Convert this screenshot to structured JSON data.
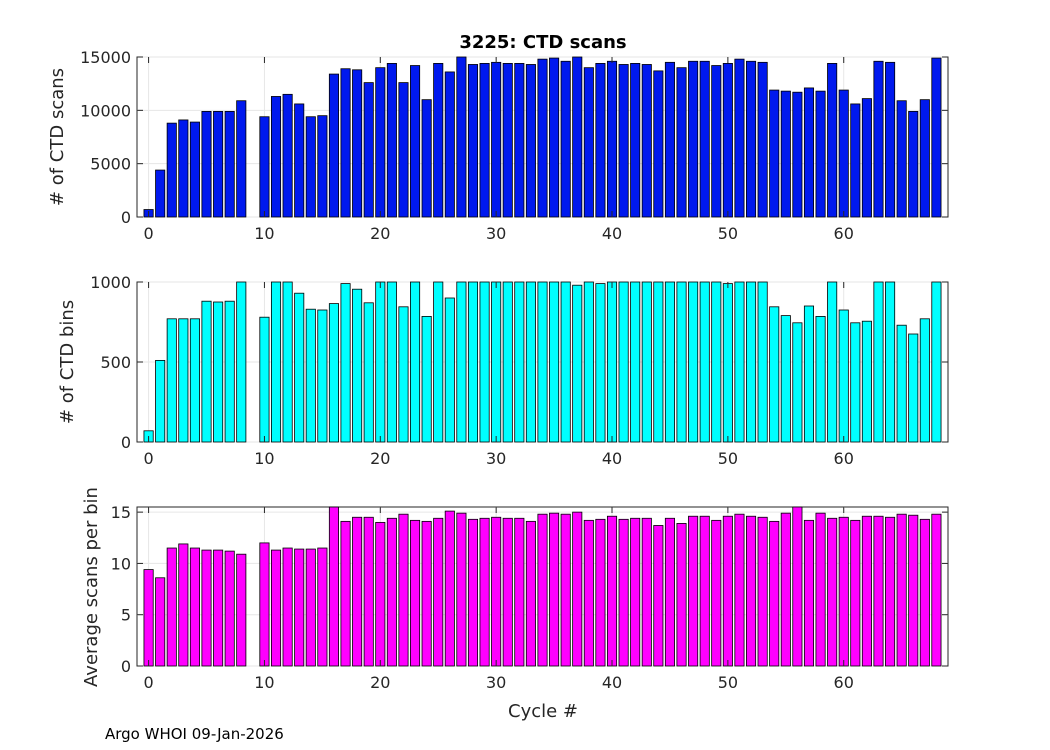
{
  "footer": "Argo WHOI 09-Jan-2026",
  "chart_data": [
    {
      "type": "bar",
      "title": "3225: CTD scans",
      "xlabel": "",
      "ylabel": "# of CTD scans",
      "color": "#0019ee",
      "xlim": [
        -1,
        69
      ],
      "ylim": [
        0,
        15000
      ],
      "xticks": [
        0,
        10,
        20,
        30,
        40,
        50,
        60
      ],
      "yticks": [
        0,
        5000,
        10000,
        15000
      ],
      "x": [
        0,
        1,
        2,
        3,
        4,
        5,
        6,
        7,
        8,
        9,
        10,
        11,
        12,
        13,
        14,
        15,
        16,
        17,
        18,
        19,
        20,
        21,
        22,
        23,
        24,
        25,
        26,
        27,
        28,
        29,
        30,
        31,
        32,
        33,
        34,
        35,
        36,
        37,
        38,
        39,
        40,
        41,
        42,
        43,
        44,
        45,
        46,
        47,
        48,
        49,
        50,
        51,
        52,
        53,
        54,
        55,
        56,
        57,
        58,
        59,
        60,
        61,
        62,
        63,
        64,
        65,
        66,
        67,
        68
      ],
      "values": [
        700,
        4400,
        8800,
        9100,
        8900,
        9900,
        9900,
        9900,
        10900,
        0,
        9400,
        11300,
        11500,
        10600,
        9400,
        9500,
        13400,
        13900,
        13800,
        12600,
        14000,
        14400,
        12600,
        14200,
        11000,
        14400,
        13600,
        15000,
        14300,
        14400,
        14500,
        14400,
        14400,
        14300,
        14800,
        14900,
        14600,
        15000,
        14000,
        14400,
        14600,
        14300,
        14400,
        14300,
        13700,
        14500,
        14000,
        14600,
        14600,
        14200,
        14400,
        14800,
        14600,
        14500,
        11900,
        11800,
        11700,
        12100,
        11800,
        14400,
        11900,
        10600,
        11100,
        14600,
        14500,
        10900,
        9900,
        11000,
        14900
      ]
    },
    {
      "type": "bar",
      "title": "",
      "xlabel": "",
      "ylabel": "# of CTD bins",
      "color": "#00ffff",
      "xlim": [
        -1,
        69
      ],
      "ylim": [
        0,
        1000
      ],
      "xticks": [
        0,
        10,
        20,
        30,
        40,
        50,
        60
      ],
      "yticks": [
        0,
        500,
        1000
      ],
      "x": [
        0,
        1,
        2,
        3,
        4,
        5,
        6,
        7,
        8,
        9,
        10,
        11,
        12,
        13,
        14,
        15,
        16,
        17,
        18,
        19,
        20,
        21,
        22,
        23,
        24,
        25,
        26,
        27,
        28,
        29,
        30,
        31,
        32,
        33,
        34,
        35,
        36,
        37,
        38,
        39,
        40,
        41,
        42,
        43,
        44,
        45,
        46,
        47,
        48,
        49,
        50,
        51,
        52,
        53,
        54,
        55,
        56,
        57,
        58,
        59,
        60,
        61,
        62,
        63,
        64,
        65,
        66,
        67,
        68
      ],
      "values": [
        70,
        510,
        770,
        770,
        770,
        880,
        875,
        880,
        1000,
        0,
        780,
        1000,
        1000,
        930,
        830,
        825,
        865,
        990,
        955,
        870,
        1000,
        1000,
        845,
        1000,
        785,
        1000,
        900,
        1000,
        1000,
        1000,
        1000,
        1000,
        1000,
        1000,
        1000,
        1000,
        1000,
        980,
        1000,
        990,
        1000,
        1000,
        1000,
        1000,
        1000,
        1000,
        1000,
        1000,
        1000,
        1000,
        990,
        1000,
        1000,
        1000,
        845,
        790,
        745,
        850,
        785,
        1000,
        825,
        745,
        755,
        1000,
        1000,
        730,
        675,
        770,
        1000
      ]
    },
    {
      "type": "bar",
      "title": "",
      "xlabel": "Cycle #",
      "ylabel": "Average scans per bin",
      "color": "#ff00ff",
      "xlim": [
        -1,
        69
      ],
      "ylim": [
        0,
        15.5
      ],
      "xticks": [
        0,
        10,
        20,
        30,
        40,
        50,
        60
      ],
      "yticks": [
        0,
        5,
        10,
        15
      ],
      "x": [
        0,
        1,
        2,
        3,
        4,
        5,
        6,
        7,
        8,
        9,
        10,
        11,
        12,
        13,
        14,
        15,
        16,
        17,
        18,
        19,
        20,
        21,
        22,
        23,
        24,
        25,
        26,
        27,
        28,
        29,
        30,
        31,
        32,
        33,
        34,
        35,
        36,
        37,
        38,
        39,
        40,
        41,
        42,
        43,
        44,
        45,
        46,
        47,
        48,
        49,
        50,
        51,
        52,
        53,
        54,
        55,
        56,
        57,
        58,
        59,
        60,
        61,
        62,
        63,
        64,
        65,
        66,
        67,
        68
      ],
      "values": [
        9.4,
        8.6,
        11.5,
        11.9,
        11.5,
        11.3,
        11.3,
        11.2,
        10.9,
        0,
        12.0,
        11.3,
        11.5,
        11.4,
        11.4,
        11.5,
        15.5,
        14.1,
        14.5,
        14.5,
        14.0,
        14.4,
        14.8,
        14.2,
        14.1,
        14.4,
        15.1,
        14.9,
        14.3,
        14.4,
        14.5,
        14.4,
        14.4,
        14.1,
        14.8,
        14.9,
        14.8,
        15.0,
        14.2,
        14.3,
        14.6,
        14.3,
        14.4,
        14.4,
        13.7,
        14.4,
        13.9,
        14.6,
        14.6,
        14.2,
        14.6,
        14.8,
        14.6,
        14.5,
        14.1,
        14.9,
        15.5,
        14.2,
        14.9,
        14.4,
        14.5,
        14.2,
        14.6,
        14.6,
        14.5,
        14.8,
        14.7,
        14.3,
        14.8
      ]
    }
  ]
}
